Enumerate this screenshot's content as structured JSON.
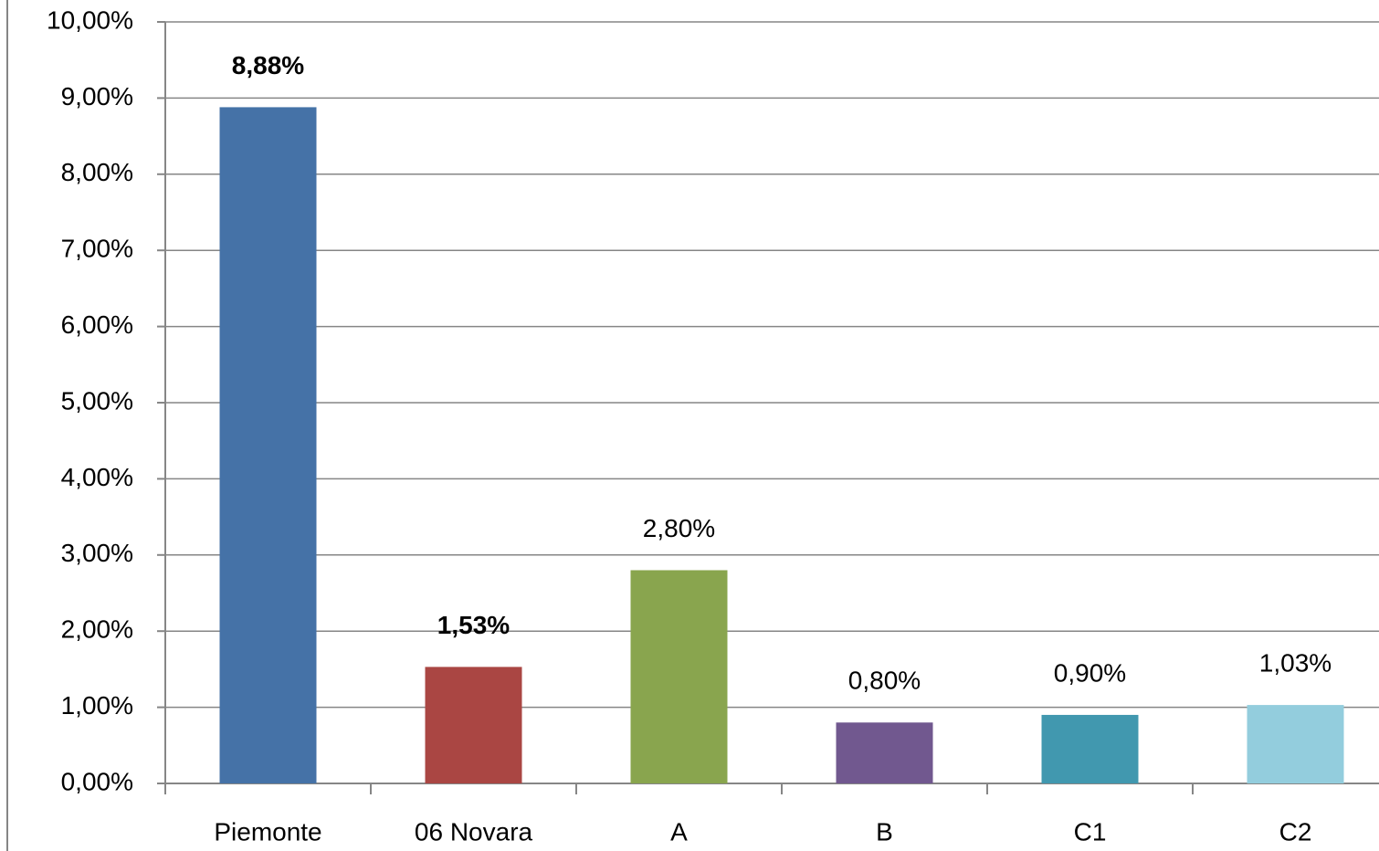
{
  "chart_data": {
    "type": "bar",
    "categories": [
      "Piemonte",
      "06 Novara",
      "A",
      "B",
      "C1",
      "C2"
    ],
    "values": [
      8.88,
      1.53,
      2.8,
      0.8,
      0.9,
      1.03
    ],
    "value_labels": [
      "8,88%",
      "1,53%",
      "2,80%",
      "0,80%",
      "0,90%",
      "1,03%"
    ],
    "label_bold": [
      true,
      true,
      false,
      false,
      false,
      false
    ],
    "colors": [
      "#4572a7",
      "#aa4643",
      "#89a54e",
      "#71588f",
      "#4198af",
      "#93cddd"
    ],
    "ylim": [
      0,
      10
    ],
    "yticks": [
      {
        "value": 0,
        "label": "0,00%"
      },
      {
        "value": 1,
        "label": "1,00%"
      },
      {
        "value": 2,
        "label": "2,00%"
      },
      {
        "value": 3,
        "label": "3,00%"
      },
      {
        "value": 4,
        "label": "4,00%"
      },
      {
        "value": 5,
        "label": "5,00%"
      },
      {
        "value": 6,
        "label": "6,00%"
      },
      {
        "value": 7,
        "label": "7,00%"
      },
      {
        "value": 8,
        "label": "8,00%"
      },
      {
        "value": 9,
        "label": "9,00%"
      },
      {
        "value": 10,
        "label": "10,00%"
      }
    ],
    "grid": true
  }
}
